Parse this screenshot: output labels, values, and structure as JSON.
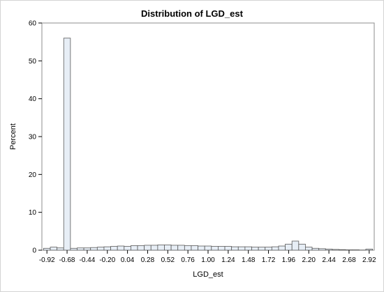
{
  "chart_data": {
    "type": "bar",
    "title": "Distribution of LGD_est",
    "xlabel": "LGD_est",
    "ylabel": "Percent",
    "ylim": [
      0,
      60
    ],
    "xlim": [
      -0.98,
      2.98
    ],
    "bin_width": 0.08,
    "y_ticks": [
      0,
      10,
      20,
      30,
      40,
      50,
      60
    ],
    "x_ticks": [
      "-0.92",
      "-0.68",
      "-0.44",
      "-0.20",
      "0.04",
      "0.28",
      "0.52",
      "0.76",
      "1.00",
      "1.24",
      "1.48",
      "1.72",
      "1.96",
      "2.20",
      "2.44",
      "2.68",
      "2.92"
    ],
    "x": [
      -0.92,
      -0.84,
      -0.76,
      -0.68,
      -0.6,
      -0.52,
      -0.44,
      -0.36,
      -0.28,
      -0.2,
      -0.12,
      -0.04,
      0.04,
      0.12,
      0.2,
      0.28,
      0.36,
      0.44,
      0.52,
      0.6,
      0.68,
      0.76,
      0.84,
      0.92,
      1.0,
      1.08,
      1.16,
      1.24,
      1.32,
      1.4,
      1.48,
      1.56,
      1.64,
      1.72,
      1.8,
      1.88,
      1.96,
      2.04,
      2.12,
      2.2,
      2.28,
      2.36,
      2.44,
      2.52,
      2.6,
      2.68,
      2.76,
      2.84,
      2.92
    ],
    "values": [
      0.5,
      0.8,
      0.6,
      56.0,
      0.5,
      0.6,
      0.6,
      0.7,
      0.8,
      0.9,
      1.0,
      1.1,
      1.0,
      1.2,
      1.2,
      1.3,
      1.3,
      1.4,
      1.4,
      1.3,
      1.3,
      1.2,
      1.2,
      1.1,
      1.1,
      1.0,
      1.0,
      1.0,
      0.9,
      0.9,
      0.9,
      0.8,
      0.8,
      0.8,
      0.9,
      1.1,
      1.6,
      2.4,
      1.6,
      0.8,
      0.5,
      0.4,
      0.3,
      0.2,
      0.15,
      0.1,
      0.1,
      0.05,
      0.3
    ],
    "grid": false,
    "bar_color": "#e7eef6",
    "bar_edge_color": "#5a5a5a"
  }
}
